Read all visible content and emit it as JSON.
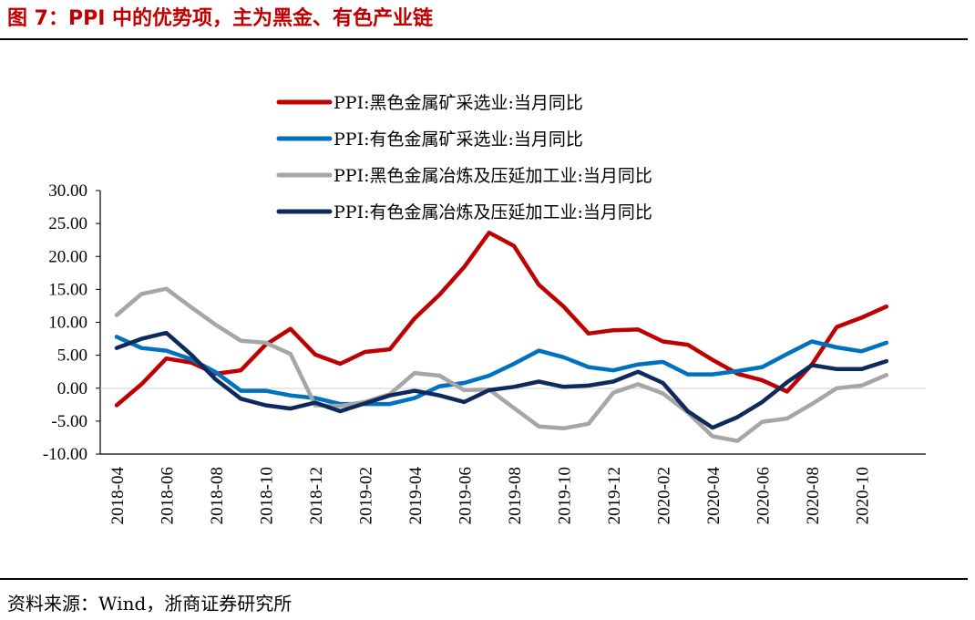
{
  "title": "图 7：PPI 中的优势项，主为黑金、有色产业链",
  "source": "资料来源：Wind，浙商证券研究所",
  "chart_data": {
    "type": "line",
    "ylim": [
      -10,
      30
    ],
    "y_ticks": [
      "30.00",
      "25.00",
      "20.00",
      "15.00",
      "10.00",
      "5.00",
      "0.00",
      "-5.00",
      "-10.00"
    ],
    "x": [
      "2018-04",
      "2018-05",
      "2018-06",
      "2018-07",
      "2018-08",
      "2018-09",
      "2018-10",
      "2018-11",
      "2018-12",
      "2019-01",
      "2019-02",
      "2019-03",
      "2019-04",
      "2019-05",
      "2019-06",
      "2019-07",
      "2019-08",
      "2019-09",
      "2019-10",
      "2019-11",
      "2019-12",
      "2020-01",
      "2020-02",
      "2020-03",
      "2020-04",
      "2020-05",
      "2020-06",
      "2020-07",
      "2020-08",
      "2020-09",
      "2020-10",
      "2020-11"
    ],
    "x_tick_labels": [
      "2018-04",
      "2018-06",
      "2018-08",
      "2018-10",
      "2018-12",
      "2019-02",
      "2019-04",
      "2019-06",
      "2019-08",
      "2019-10",
      "2019-12",
      "2020-02",
      "2020-04",
      "2020-06",
      "2020-08",
      "2020-10"
    ],
    "legend_position": "top-right",
    "series": [
      {
        "name": "PPI:黑色金属矿采选业:当月同比",
        "color": "#c00000",
        "values": [
          -2.6,
          0.6,
          4.5,
          3.9,
          2.2,
          2.7,
          6.6,
          9.0,
          5.1,
          3.7,
          5.5,
          5.9,
          10.6,
          14.2,
          18.4,
          23.6,
          21.6,
          15.7,
          12.4,
          8.3,
          8.8,
          8.9,
          7.1,
          6.6,
          4.3,
          2.2,
          1.2,
          -0.5,
          3.6,
          9.3,
          10.7,
          12.4
        ]
      },
      {
        "name": "PPI:有色金属矿采选业:当月同比",
        "color": "#0070c0",
        "values": [
          7.8,
          6.1,
          5.7,
          4.4,
          2.4,
          -0.4,
          -0.4,
          -1.1,
          -1.5,
          -2.4,
          -2.4,
          -2.4,
          -1.5,
          0.3,
          0.8,
          1.9,
          3.7,
          5.7,
          4.7,
          3.2,
          2.7,
          3.6,
          4.0,
          2.1,
          2.1,
          2.6,
          3.2,
          5.2,
          7.1,
          6.2,
          5.6,
          6.9
        ]
      },
      {
        "name": "PPI:黑色金属冶炼及压延加工业:当月同比",
        "color": "#a6a6a6",
        "values": [
          11.1,
          14.3,
          15.1,
          12.3,
          9.6,
          7.2,
          6.9,
          5.2,
          -2.6,
          -2.7,
          -2.1,
          -0.9,
          2.3,
          1.9,
          -0.3,
          -0.2,
          -3.0,
          -5.8,
          -6.1,
          -5.4,
          -0.7,
          0.6,
          -0.8,
          -3.7,
          -7.3,
          -8.0,
          -5.1,
          -4.6,
          -2.4,
          0.0,
          0.4,
          2.0
        ]
      },
      {
        "name": "PPI:有色金属冶炼及压延加工业:当月同比",
        "color": "#0e2a5c",
        "values": [
          6.1,
          7.5,
          8.4,
          5.1,
          1.3,
          -1.6,
          -2.6,
          -3.1,
          -2.2,
          -3.5,
          -2.3,
          -1.1,
          -0.4,
          -1.1,
          -2.1,
          -0.3,
          0.2,
          1.0,
          0.2,
          0.4,
          1.0,
          2.5,
          0.8,
          -3.5,
          -6.0,
          -4.4,
          -2.1,
          0.9,
          3.5,
          2.9,
          2.9,
          4.1
        ]
      }
    ]
  }
}
